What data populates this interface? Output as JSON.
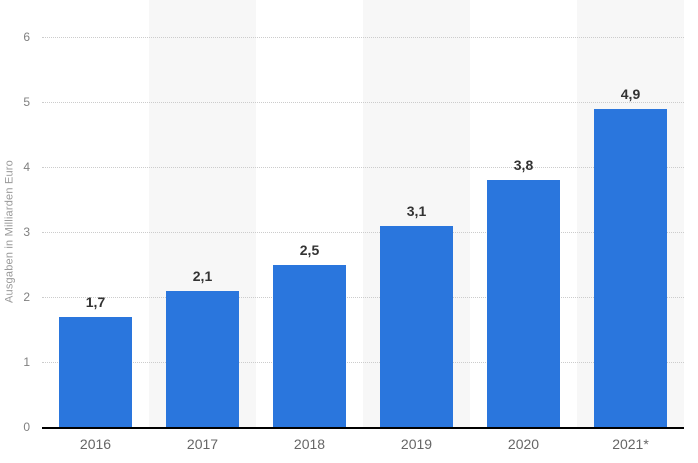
{
  "chart_data": {
    "type": "bar",
    "title": "",
    "xlabel": "",
    "ylabel": "Ausgaben in Milliarden Euro",
    "categories": [
      "2016",
      "2017",
      "2018",
      "2019",
      "2020",
      "2021*"
    ],
    "values": [
      1.7,
      2.1,
      2.5,
      3.1,
      3.8,
      4.9
    ],
    "value_labels": [
      "1,7",
      "2,1",
      "2,5",
      "3,1",
      "3,8",
      "4,9"
    ],
    "ylim": [
      0,
      6
    ],
    "yticks": [
      "0",
      "1",
      "2",
      "3",
      "4",
      "5",
      "6"
    ],
    "grid": "horizontal-dotted",
    "legend": "none",
    "background_bands": "alternating vertical, odd columns shaded",
    "colors": {
      "bar": "#2a76dd",
      "band_alt": "#f7f7f7",
      "gridline": "#cccccc",
      "axis_line": "#000000",
      "value_label": "#333333",
      "tick_label": "#808080",
      "category_label": "#666666",
      "axis_title": "#999999",
      "background": "#ffffff"
    }
  }
}
